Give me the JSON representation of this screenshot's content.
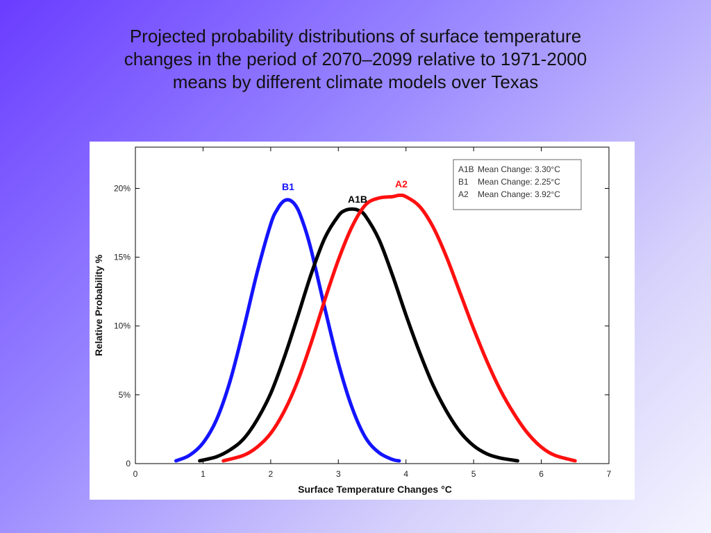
{
  "slide": {
    "title_line1": "Projected probability distributions of surface temperature",
    "title_line2": "changes in the period of 2070–2099 relative to 1971-2000",
    "title_line3": "means by different climate models over Texas"
  },
  "chart_data": {
    "type": "line",
    "xlabel": "Surface Temperature Changes °C",
    "ylabel": "Relative Probability %",
    "xlim": [
      0,
      7
    ],
    "ylim": [
      0,
      23
    ],
    "x_ticks": [
      "0",
      "1",
      "2",
      "3",
      "4",
      "5",
      "6",
      "7"
    ],
    "y_ticks": [
      {
        "value": 0,
        "label": "0"
      },
      {
        "value": 5,
        "label": "5%"
      },
      {
        "value": 10,
        "label": "10%"
      },
      {
        "value": 15,
        "label": "15%"
      },
      {
        "value": 20,
        "label": "20%"
      }
    ],
    "grid": false,
    "legend_position": "top-right",
    "legend": [
      {
        "series": "A1B",
        "label": "A1B",
        "text": "Mean Change: 3.30°C"
      },
      {
        "series": "B1",
        "label": "B1",
        "text": "Mean Change: 2.25°C"
      },
      {
        "series": "A2",
        "label": "A2",
        "text": "Mean Change: 3.92°C"
      }
    ],
    "series": [
      {
        "name": "B1",
        "color": "#1414ff",
        "x": [
          0.6,
          0.8,
          1.0,
          1.2,
          1.4,
          1.6,
          1.8,
          2.0,
          2.1,
          2.2,
          2.3,
          2.4,
          2.5,
          2.6,
          2.8,
          3.0,
          3.2,
          3.4,
          3.6,
          3.8,
          3.9
        ],
        "y": [
          0.2,
          0.6,
          1.5,
          3.2,
          6.0,
          9.8,
          13.9,
          17.4,
          18.5,
          19.1,
          19.1,
          18.5,
          17.2,
          15.5,
          11.3,
          7.3,
          4.1,
          1.9,
          0.8,
          0.3,
          0.2
        ]
      },
      {
        "name": "A1B",
        "color": "#000000",
        "x": [
          0.95,
          1.2,
          1.4,
          1.6,
          1.8,
          2.0,
          2.2,
          2.4,
          2.6,
          2.8,
          3.0,
          3.1,
          3.2,
          3.3,
          3.4,
          3.6,
          3.8,
          4.0,
          4.2,
          4.4,
          4.6,
          4.8,
          5.0,
          5.2,
          5.4,
          5.65
        ],
        "y": [
          0.2,
          0.5,
          1.0,
          1.8,
          3.2,
          5.1,
          7.7,
          10.7,
          13.8,
          16.4,
          18.0,
          18.4,
          18.5,
          18.4,
          18.0,
          16.3,
          13.7,
          10.8,
          8.1,
          5.7,
          3.8,
          2.3,
          1.3,
          0.7,
          0.4,
          0.2
        ]
      },
      {
        "name": "A2",
        "color": "#ff1010",
        "x": [
          1.3,
          1.6,
          1.8,
          2.0,
          2.2,
          2.4,
          2.6,
          2.8,
          3.0,
          3.2,
          3.4,
          3.6,
          3.8,
          3.9,
          4.0,
          4.2,
          4.4,
          4.6,
          4.8,
          5.0,
          5.2,
          5.4,
          5.6,
          5.8,
          6.0,
          6.2,
          6.5
        ],
        "y": [
          0.2,
          0.6,
          1.2,
          2.2,
          3.8,
          6.0,
          8.8,
          11.9,
          14.8,
          17.2,
          18.8,
          19.3,
          19.4,
          19.5,
          19.4,
          18.7,
          17.2,
          15.0,
          12.4,
          9.8,
          7.4,
          5.3,
          3.6,
          2.2,
          1.2,
          0.6,
          0.2
        ]
      }
    ]
  }
}
